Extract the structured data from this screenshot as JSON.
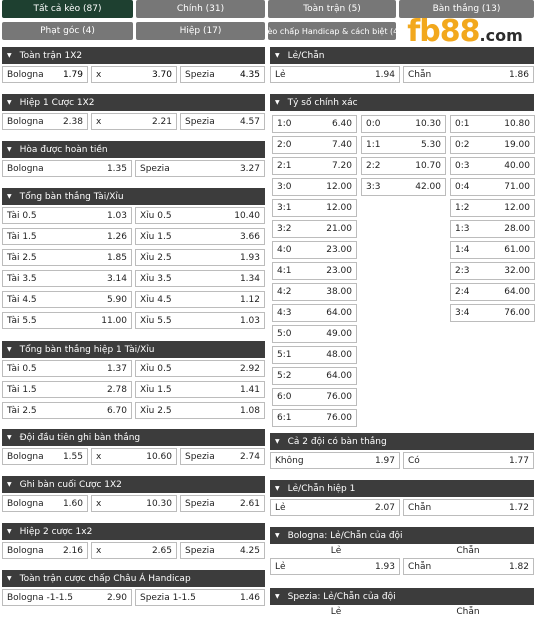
{
  "tabs": [
    {
      "label": "Tất cả kèo (87)",
      "active": true
    },
    {
      "label": "Chính (31)"
    },
    {
      "label": "Toàn trận (5)"
    },
    {
      "label": "Bàn thắng (13)"
    },
    {
      "label": "Phạt góc (4)"
    },
    {
      "label": "Hiệp (17)"
    },
    {
      "label": "Kèo chấp Handicap & cách biệt (4)"
    }
  ],
  "logo": {
    "main": "fb88",
    "suffix": ".com"
  },
  "left": {
    "s1": {
      "title": "Toàn trận 1X2",
      "rows": [
        [
          [
            "Bologna",
            "1.79"
          ],
          [
            "x",
            "3.70"
          ],
          [
            "Spezia",
            "4.35"
          ]
        ]
      ]
    },
    "s2": {
      "title": "Hiệp 1 Cược 1X2",
      "rows": [
        [
          [
            "Bologna",
            "2.38"
          ],
          [
            "x",
            "2.21"
          ],
          [
            "Spezia",
            "4.57"
          ]
        ]
      ]
    },
    "s3": {
      "title": "Hòa được hoàn tiền",
      "rows": [
        [
          [
            "Bologna",
            "1.35"
          ],
          [
            "Spezia",
            "3.27"
          ]
        ]
      ]
    },
    "s4": {
      "title": "Tổng bàn thắng Tài/Xỉu",
      "rows": [
        [
          [
            "Tài 0.5",
            "1.03"
          ],
          [
            "Xỉu 0.5",
            "10.40"
          ]
        ],
        [
          [
            "Tài 1.5",
            "1.26"
          ],
          [
            "Xỉu 1.5",
            "3.66"
          ]
        ],
        [
          [
            "Tài 2.5",
            "1.85"
          ],
          [
            "Xỉu 2.5",
            "1.93"
          ]
        ],
        [
          [
            "Tài 3.5",
            "3.14"
          ],
          [
            "Xỉu 3.5",
            "1.34"
          ]
        ],
        [
          [
            "Tài 4.5",
            "5.90"
          ],
          [
            "Xỉu 4.5",
            "1.12"
          ]
        ],
        [
          [
            "Tài 5.5",
            "11.00"
          ],
          [
            "Xỉu 5.5",
            "1.03"
          ]
        ]
      ]
    },
    "s5": {
      "title": "Tổng bàn thắng hiệp 1 Tài/Xỉu",
      "rows": [
        [
          [
            "Tài 0.5",
            "1.37"
          ],
          [
            "Xỉu 0.5",
            "2.92"
          ]
        ],
        [
          [
            "Tài 1.5",
            "2.78"
          ],
          [
            "Xỉu 1.5",
            "1.41"
          ]
        ],
        [
          [
            "Tài 2.5",
            "6.70"
          ],
          [
            "Xỉu 2.5",
            "1.08"
          ]
        ]
      ]
    },
    "s6": {
      "title": "Đội đầu tiên ghi bàn thắng",
      "rows": [
        [
          [
            "Bologna",
            "1.55"
          ],
          [
            "x",
            "10.60"
          ],
          [
            "Spezia",
            "2.74"
          ]
        ]
      ]
    },
    "s7": {
      "title": "Ghi bàn cuối Cược 1X2",
      "rows": [
        [
          [
            "Bologna",
            "1.60"
          ],
          [
            "x",
            "10.30"
          ],
          [
            "Spezia",
            "2.61"
          ]
        ]
      ]
    },
    "s8": {
      "title": "Hiệp 2 cược 1x2",
      "rows": [
        [
          [
            "Bologna",
            "2.16"
          ],
          [
            "x",
            "2.65"
          ],
          [
            "Spezia",
            "4.25"
          ]
        ]
      ]
    },
    "s9": {
      "title": "Toàn trận cược chấp Châu Á Handicap",
      "rows": [
        [
          [
            "Bologna -1-1.5",
            "2.90"
          ],
          [
            "Spezia 1-1.5",
            "1.46"
          ]
        ]
      ]
    }
  },
  "right": {
    "r1": {
      "title": "Lẻ/Chẵn",
      "rows": [
        [
          [
            "Lẻ",
            "1.94"
          ],
          [
            "Chẵn",
            "1.86"
          ]
        ]
      ]
    },
    "r2": {
      "title": "Tỷ số chính xác",
      "col1": [
        [
          "1:0",
          "6.40"
        ],
        [
          "2:0",
          "7.40"
        ],
        [
          "2:1",
          "7.20"
        ],
        [
          "3:0",
          "12.00"
        ],
        [
          "3:1",
          "12.00"
        ],
        [
          "3:2",
          "21.00"
        ],
        [
          "4:0",
          "23.00"
        ],
        [
          "4:1",
          "23.00"
        ],
        [
          "4:2",
          "38.00"
        ],
        [
          "4:3",
          "64.00"
        ],
        [
          "5:0",
          "49.00"
        ],
        [
          "5:1",
          "48.00"
        ],
        [
          "5:2",
          "64.00"
        ],
        [
          "6:0",
          "76.00"
        ],
        [
          "6:1",
          "76.00"
        ]
      ],
      "col2": [
        [
          "0:0",
          "10.30"
        ],
        [
          "1:1",
          "5.30"
        ],
        [
          "2:2",
          "10.70"
        ],
        [
          "3:3",
          "42.00"
        ]
      ],
      "col3": [
        [
          "0:1",
          "10.80"
        ],
        [
          "0:2",
          "19.00"
        ],
        [
          "0:3",
          "40.00"
        ],
        [
          "0:4",
          "71.00"
        ],
        [
          "1:2",
          "12.00"
        ],
        [
          "1:3",
          "28.00"
        ],
        [
          "1:4",
          "61.00"
        ],
        [
          "2:3",
          "32.00"
        ],
        [
          "2:4",
          "64.00"
        ],
        [
          "3:4",
          "76.00"
        ]
      ]
    },
    "r3": {
      "title": "Cả 2 đội có bàn thắng",
      "rows": [
        [
          [
            "Không",
            "1.97"
          ],
          [
            "Có",
            "1.77"
          ]
        ]
      ]
    },
    "r4": {
      "title": "Lẻ/Chẵn hiệp 1",
      "rows": [
        [
          [
            "Lẻ",
            "2.07"
          ],
          [
            "Chẵn",
            "1.72"
          ]
        ]
      ]
    },
    "r5": {
      "title": "Bologna: Lẻ/Chẵn của đội",
      "head": [
        "Lẻ",
        "Chẵn"
      ],
      "rows": [
        [
          [
            "Lẻ",
            "1.93"
          ],
          [
            "Chẵn",
            "1.82"
          ]
        ]
      ]
    },
    "r6": {
      "title": "Spezia: Lẻ/Chẵn của đội",
      "head": [
        "Lẻ",
        "Chẵn"
      ]
    }
  }
}
